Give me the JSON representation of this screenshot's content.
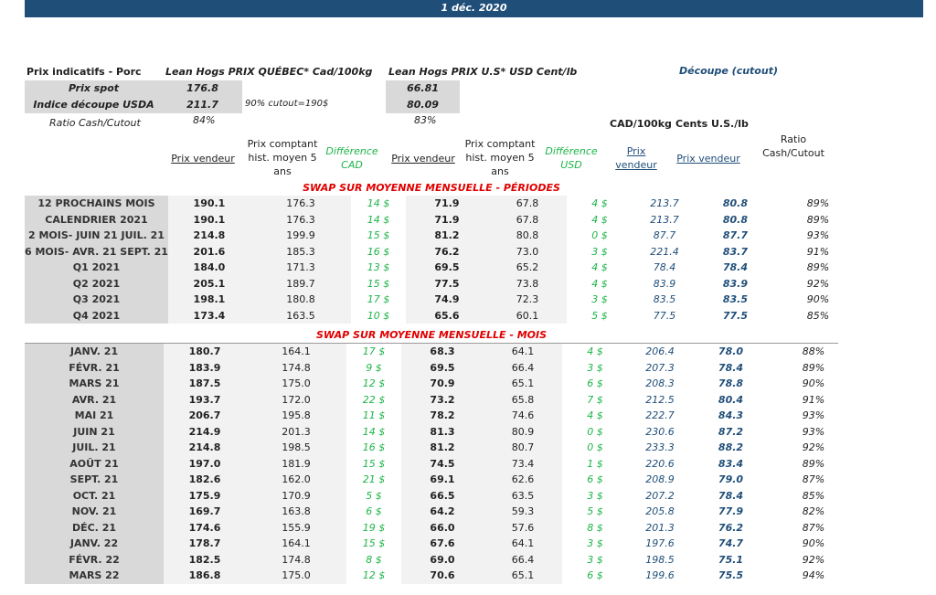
{
  "date": "1 déc. 2020",
  "left_title": "Prix indicatifs - Porc",
  "quebec_title": "Lean Hogs PRIX QUÉBEC* Cad/100kg",
  "us_title": "Lean Hogs PRIX U.S* USD Cent/lb",
  "cutout_title": "Découpe (cutout)",
  "spot_label": "Prix spot",
  "spot_quebec": "176.8",
  "spot_us": "66.81",
  "usda_label": "Indice découpe USDA",
  "usda_quebec": "211.7",
  "usda_note": "90% cutout=190$",
  "usda_us": "80.09",
  "ratio_label": "Ratio Cash/Cutout",
  "ratio_quebec": "84%",
  "ratio_us": "83%",
  "cad_unit": "CAD/100kg",
  "cents_unit": "Cents U.S./lb",
  "headers": {
    "seller_q": "Prix vendeur",
    "hist_q": "Prix comptant hist. moyen 5 ans",
    "diff_cad": "Différence CAD",
    "seller_u": "Prix vendeur",
    "hist_u": "Prix comptant hist. moyen 5 ans",
    "diff_usd": "Différence USD",
    "prix_vendeur_cad": "Prix vendeur",
    "prix_vendeur_cents": "Prix vendeur",
    "ratio": "Ratio Cash/Cutout"
  },
  "section_periods": "SWAP SUR MOYENNE MENSUELLE - PÉRIODES",
  "section_months": "SWAP SUR MOYENNE MENSUELLE - MOIS",
  "periods": [
    [
      "12 PROCHAINS MOIS",
      "190.1",
      "176.3",
      "14 $",
      "71.9",
      "67.8",
      "4 $",
      "213.7",
      "80.8",
      "89%"
    ],
    [
      "CALENDRIER 2021",
      "190.1",
      "176.3",
      "14 $",
      "71.9",
      "67.8",
      "4 $",
      "213.7",
      "80.8",
      "89%"
    ],
    [
      "2 MOIS- JUIN 21 JUIL. 21",
      "214.8",
      "199.9",
      "15 $",
      "81.2",
      "80.8",
      "0 $",
      "87.7",
      "87.7",
      "93%"
    ],
    [
      "6 MOIS- AVR. 21 SEPT. 21",
      "201.6",
      "185.3",
      "16 $",
      "76.2",
      "73.0",
      "3 $",
      "221.4",
      "83.7",
      "91%"
    ],
    [
      "Q1 2021",
      "184.0",
      "171.3",
      "13 $",
      "69.5",
      "65.2",
      "4 $",
      "78.4",
      "78.4",
      "89%"
    ],
    [
      "Q2 2021",
      "205.1",
      "189.7",
      "15 $",
      "77.5",
      "73.8",
      "4 $",
      "83.9",
      "83.9",
      "92%"
    ],
    [
      "Q3 2021",
      "198.1",
      "180.8",
      "17 $",
      "74.9",
      "72.3",
      "3 $",
      "83.5",
      "83.5",
      "90%"
    ],
    [
      "Q4 2021",
      "173.4",
      "163.5",
      "10 $",
      "65.6",
      "60.1",
      "5 $",
      "77.5",
      "77.5",
      "85%"
    ]
  ],
  "months": [
    [
      "JANV. 21",
      "180.7",
      "164.1",
      "17 $",
      "68.3",
      "64.1",
      "4 $",
      "206.4",
      "78.0",
      "88%"
    ],
    [
      "FÉVR. 21",
      "183.9",
      "174.8",
      "9 $",
      "69.5",
      "66.4",
      "3 $",
      "207.3",
      "78.4",
      "89%"
    ],
    [
      "MARS 21",
      "187.5",
      "175.0",
      "12 $",
      "70.9",
      "65.1",
      "6 $",
      "208.3",
      "78.8",
      "90%"
    ],
    [
      "AVR. 21",
      "193.7",
      "172.0",
      "22 $",
      "73.2",
      "65.8",
      "7 $",
      "212.5",
      "80.4",
      "91%"
    ],
    [
      "MAI 21",
      "206.7",
      "195.8",
      "11 $",
      "78.2",
      "74.6",
      "4 $",
      "222.7",
      "84.3",
      "93%"
    ],
    [
      "JUIN 21",
      "214.9",
      "201.3",
      "14 $",
      "81.3",
      "80.9",
      "0 $",
      "230.6",
      "87.2",
      "93%"
    ],
    [
      "JUIL. 21",
      "214.8",
      "198.5",
      "16 $",
      "81.2",
      "80.7",
      "0 $",
      "233.3",
      "88.2",
      "92%"
    ],
    [
      "AOÛT 21",
      "197.0",
      "181.9",
      "15 $",
      "74.5",
      "73.4",
      "1 $",
      "220.6",
      "83.4",
      "89%"
    ],
    [
      "SEPT. 21",
      "182.6",
      "162.0",
      "21 $",
      "69.1",
      "62.6",
      "6 $",
      "208.9",
      "79.0",
      "87%"
    ],
    [
      "OCT. 21",
      "175.9",
      "170.9",
      "5 $",
      "66.5",
      "63.5",
      "3 $",
      "207.2",
      "78.4",
      "85%"
    ],
    [
      "NOV. 21",
      "169.7",
      "163.8",
      "6 $",
      "64.2",
      "59.3",
      "5 $",
      "205.8",
      "77.9",
      "82%"
    ],
    [
      "DÉC. 21",
      "174.6",
      "155.9",
      "19 $",
      "66.0",
      "57.6",
      "8 $",
      "201.3",
      "76.2",
      "87%"
    ],
    [
      "JANV. 22",
      "178.7",
      "164.1",
      "15 $",
      "67.6",
      "64.1",
      "3 $",
      "197.6",
      "74.7",
      "90%"
    ],
    [
      "FÉVR. 22",
      "182.5",
      "174.8",
      "8 $",
      "69.0",
      "66.4",
      "3 $",
      "198.5",
      "75.1",
      "92%"
    ],
    [
      "MARS 22",
      "186.8",
      "175.0",
      "12 $",
      "70.6",
      "65.1",
      "6 $",
      "199.6",
      "75.5",
      "94%"
    ]
  ]
}
